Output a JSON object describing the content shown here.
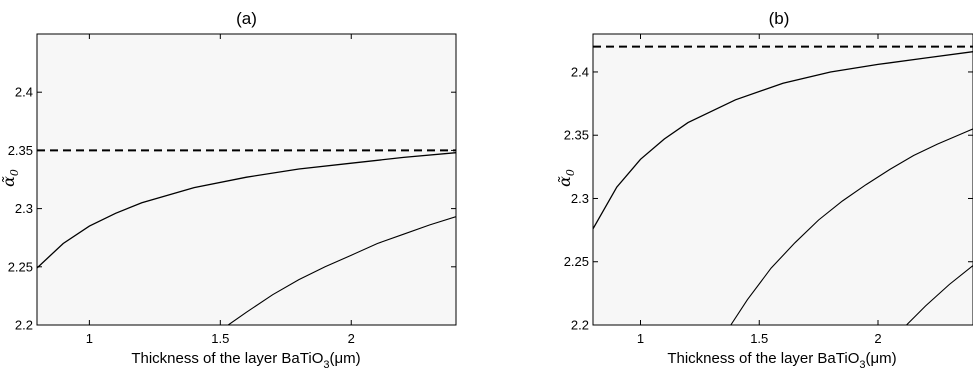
{
  "chart_data": [
    {
      "type": "line",
      "title": "(a)",
      "xlabel": "Thickness of the layer BaTiO",
      "xlabel_sub": "3",
      "xlabel_unit": "(μm)",
      "ylabel": "α̃",
      "ylabel_sub": "0",
      "xlim": [
        0.8,
        2.4
      ],
      "ylim": [
        2.2,
        2.45
      ],
      "xticks": [
        1,
        1.5,
        2
      ],
      "xtick_labels": [
        "1",
        "1.5",
        "2"
      ],
      "yticks": [
        2.2,
        2.25,
        2.3,
        2.35,
        2.4
      ],
      "ytick_labels": [
        "2.2",
        "2.25",
        "2.3",
        "2.35",
        "2.4"
      ],
      "grid": false,
      "reference_line": {
        "y": 2.35,
        "style": "dashed"
      },
      "series": [
        {
          "x": [
            0.8,
            0.9,
            1.0,
            1.1,
            1.2,
            1.4,
            1.6,
            1.8,
            2.0,
            2.2,
            2.4
          ],
          "y": [
            2.249,
            2.27,
            2.285,
            2.296,
            2.305,
            2.318,
            2.327,
            2.334,
            2.339,
            2.344,
            2.348
          ]
        },
        {
          "x": [
            1.53,
            1.6,
            1.7,
            1.8,
            1.9,
            2.0,
            2.1,
            2.2,
            2.3,
            2.4
          ],
          "y": [
            2.2,
            2.211,
            2.226,
            2.239,
            2.25,
            2.26,
            2.27,
            2.278,
            2.286,
            2.293
          ]
        }
      ]
    },
    {
      "type": "line",
      "title": "(b)",
      "xlabel": "Thickness of the layer BaTiO",
      "xlabel_sub": "3",
      "xlabel_unit": "(μm)",
      "ylabel": "α̃",
      "ylabel_sub": "0",
      "xlim": [
        0.8,
        2.4
      ],
      "ylim": [
        2.2,
        2.43
      ],
      "xticks": [
        1,
        1.5,
        2
      ],
      "xtick_labels": [
        "1",
        "1.5",
        "2"
      ],
      "yticks": [
        2.2,
        2.25,
        2.3,
        2.35,
        2.4
      ],
      "ytick_labels": [
        "2.2",
        "2.25",
        "2.3",
        "2.35",
        "2.4"
      ],
      "grid": false,
      "reference_line": {
        "y": 2.42,
        "style": "dashed"
      },
      "series": [
        {
          "x": [
            0.8,
            0.9,
            1.0,
            1.1,
            1.2,
            1.4,
            1.6,
            1.8,
            2.0,
            2.2,
            2.4
          ],
          "y": [
            2.276,
            2.309,
            2.331,
            2.347,
            2.36,
            2.378,
            2.391,
            2.4,
            2.406,
            2.411,
            2.416
          ]
        },
        {
          "x": [
            1.38,
            1.45,
            1.55,
            1.65,
            1.75,
            1.85,
            1.95,
            2.05,
            2.15,
            2.25,
            2.35,
            2.4
          ],
          "y": [
            2.2,
            2.22,
            2.245,
            2.265,
            2.283,
            2.298,
            2.311,
            2.323,
            2.334,
            2.343,
            2.351,
            2.355
          ]
        },
        {
          "x": [
            2.12,
            2.2,
            2.3,
            2.4
          ],
          "y": [
            2.2,
            2.215,
            2.232,
            2.247
          ]
        }
      ]
    }
  ]
}
